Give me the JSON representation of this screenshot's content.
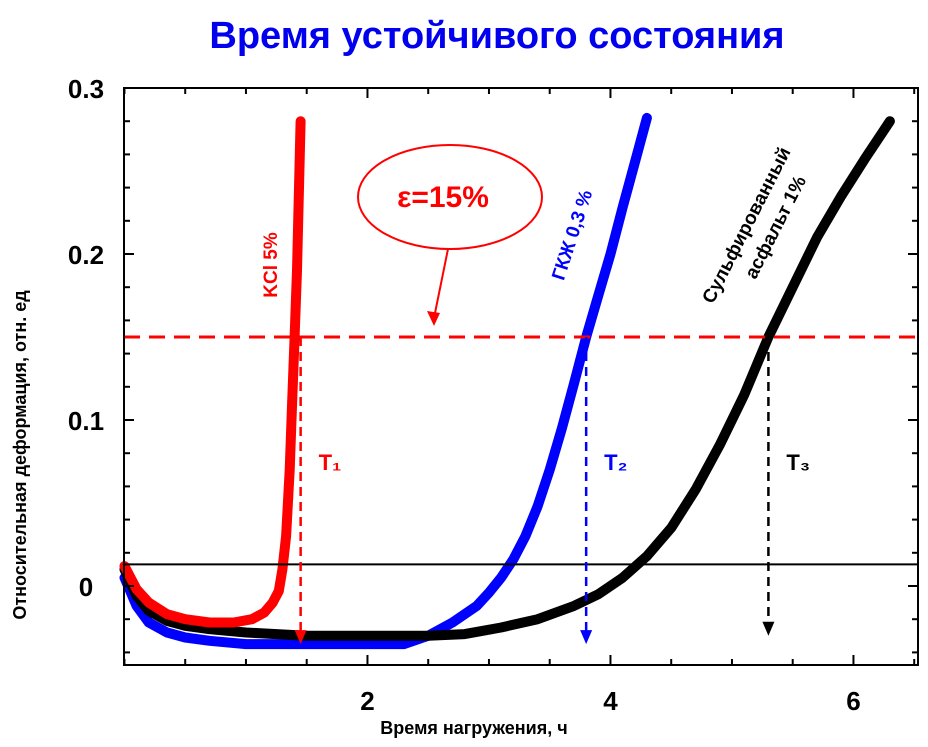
{
  "chart_data": {
    "type": "line",
    "title": "Время устойчивого состояния",
    "xlabel": "Время нагружения, ч",
    "ylabel": "Относительная деформация, отн. ед",
    "xlim": [
      0,
      6.5
    ],
    "ylim": [
      -0.04,
      0.3
    ],
    "x_ticks": [
      {
        "value": 2,
        "label": "2"
      },
      {
        "value": 4,
        "label": "4"
      },
      {
        "value": 6,
        "label": "6"
      }
    ],
    "y_ticks": [
      {
        "value": 0,
        "label": "0"
      },
      {
        "value": 0.1,
        "label": "0.1"
      },
      {
        "value": 0.2,
        "label": "0.2"
      },
      {
        "value": 0.3,
        "label": "0.3"
      }
    ],
    "grid": false,
    "series": [
      {
        "name": "KCl 5%",
        "color": "#ff0000",
        "x": [
          0.0,
          0.1,
          0.2,
          0.35,
          0.5,
          0.7,
          0.9,
          1.05,
          1.15,
          1.22,
          1.27,
          1.3,
          1.33,
          1.36,
          1.38,
          1.4,
          1.42,
          1.43,
          1.44,
          1.45
        ],
        "y": [
          0.012,
          -0.002,
          -0.01,
          -0.017,
          -0.02,
          -0.022,
          -0.022,
          -0.02,
          -0.016,
          -0.01,
          -0.003,
          0.01,
          0.03,
          0.07,
          0.11,
          0.15,
          0.19,
          0.22,
          0.25,
          0.28
        ]
      },
      {
        "name": "ГКЖ 0,3 %",
        "color": "#0000ff",
        "x": [
          0.0,
          0.1,
          0.2,
          0.35,
          0.5,
          0.7,
          1.0,
          1.5,
          2.0,
          2.3,
          2.5,
          2.7,
          2.9,
          3.0,
          3.1,
          3.2,
          3.3,
          3.4,
          3.5,
          3.6,
          3.7,
          3.8,
          3.9,
          4.0,
          4.1,
          4.2,
          4.3
        ],
        "y": [
          0.005,
          -0.012,
          -0.022,
          -0.028,
          -0.031,
          -0.033,
          -0.035,
          -0.035,
          -0.035,
          -0.035,
          -0.03,
          -0.022,
          -0.012,
          -0.004,
          0.005,
          0.016,
          0.03,
          0.048,
          0.07,
          0.095,
          0.122,
          0.15,
          0.175,
          0.2,
          0.228,
          0.255,
          0.282
        ]
      },
      {
        "name": "Сульфированный асфальт 1%",
        "color": "#000000",
        "x": [
          0.0,
          0.1,
          0.2,
          0.35,
          0.5,
          0.7,
          1.0,
          1.5,
          2.0,
          2.5,
          2.8,
          3.1,
          3.4,
          3.7,
          3.9,
          4.1,
          4.3,
          4.5,
          4.7,
          4.9,
          5.1,
          5.3,
          5.5,
          5.7,
          5.9,
          6.1,
          6.3
        ],
        "y": [
          0.01,
          -0.006,
          -0.015,
          -0.021,
          -0.024,
          -0.026,
          -0.028,
          -0.03,
          -0.03,
          -0.03,
          -0.029,
          -0.025,
          -0.02,
          -0.012,
          -0.005,
          0.005,
          0.018,
          0.035,
          0.058,
          0.085,
          0.115,
          0.15,
          0.18,
          0.21,
          0.235,
          0.258,
          0.28
        ]
      }
    ],
    "series_labels": {
      "kcl": "KCl 5%",
      "gkzh": "ГКЖ 0,3 %",
      "asphalt_line1": "Сульфированный",
      "asphalt_line2": "асфальт 1%"
    },
    "reference_lines": [
      {
        "type": "horizontal",
        "y": 0.15,
        "style": "dashed",
        "color": "#ff0000"
      },
      {
        "type": "horizontal",
        "y": 0.013,
        "style": "solid",
        "color": "#000000"
      }
    ],
    "annotation": {
      "text": "ε=15%",
      "color": "#ff0000",
      "target_x": 2.5,
      "target_y": 0.16
    },
    "markers": [
      {
        "label": "T",
        "sub": "1",
        "x": 1.45,
        "color": "#ff0000"
      },
      {
        "label": "T",
        "sub": "2",
        "x": 3.8,
        "color": "#0000ff"
      },
      {
        "label": "T",
        "sub": "3",
        "x": 5.3,
        "color": "#000000"
      }
    ],
    "title_color": "#0000ee"
  }
}
